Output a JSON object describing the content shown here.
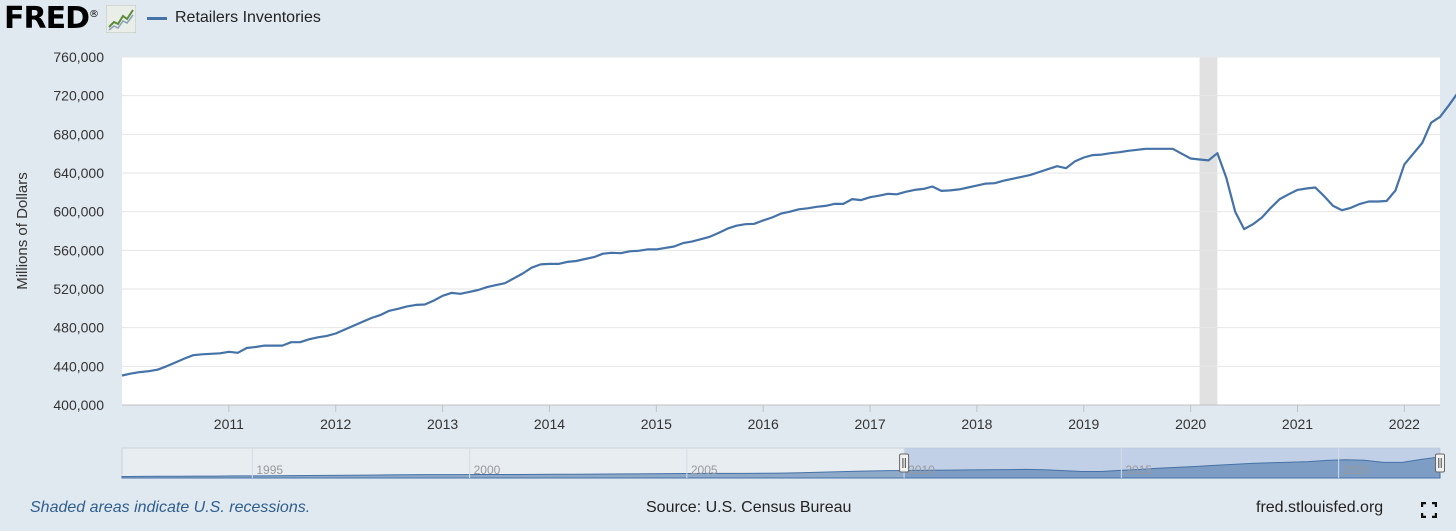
{
  "header": {
    "logo_text": "FRED",
    "logo_registered": "®",
    "logo_icon": "chart-line-icon",
    "legend_label": "Retailers Inventories"
  },
  "colors": {
    "series": "#4572a7",
    "recession": "#e1e1e1",
    "background": "#e1e9f0",
    "footer_note": "#2f5e8e"
  },
  "chart_data": {
    "type": "line",
    "title": "",
    "xlabel": "",
    "ylabel": "Millions of Dollars",
    "ylim": [
      400000,
      760000
    ],
    "yticks": [
      400000,
      440000,
      480000,
      520000,
      560000,
      600000,
      640000,
      680000,
      720000,
      760000
    ],
    "ytick_labels": [
      "400,000",
      "440,000",
      "480,000",
      "520,000",
      "560,000",
      "600,000",
      "640,000",
      "680,000",
      "720,000",
      "760,000"
    ],
    "xlim": [
      "2010-01",
      "2022-05"
    ],
    "xticks": [
      "2011",
      "2012",
      "2013",
      "2014",
      "2015",
      "2016",
      "2017",
      "2018",
      "2019",
      "2020",
      "2021",
      "2022"
    ],
    "grid": true,
    "legend": "top-left",
    "recessions": [
      {
        "start": "2020-02",
        "end": "2020-04"
      }
    ],
    "series": [
      {
        "name": "Retailers Inventories",
        "frequency": "monthly",
        "start": "2010-01",
        "values": [
          430500,
          432500,
          434000,
          435000,
          436500,
          440000,
          444000,
          448000,
          451500,
          452500,
          453000,
          453500,
          455000,
          454000,
          459000,
          460000,
          461500,
          461500,
          461500,
          465000,
          465000,
          468000,
          470000,
          471500,
          474000,
          478000,
          482000,
          486000,
          490000,
          493000,
          497500,
          499500,
          502000,
          503500,
          504000,
          508000,
          513000,
          516000,
          515000,
          517000,
          519000,
          522000,
          524000,
          526000,
          531000,
          536000,
          542000,
          545500,
          546000,
          546000,
          548000,
          549000,
          551000,
          553000,
          556500,
          557500,
          557000,
          559000,
          559500,
          561000,
          561000,
          562500,
          564000,
          567500,
          569000,
          571500,
          574000,
          578000,
          582500,
          585500,
          587000,
          587500,
          591000,
          594000,
          598000,
          600000,
          602500,
          603500,
          605000,
          606000,
          608000,
          608000,
          613000,
          612000,
          615000,
          616500,
          618500,
          618000,
          620500,
          622500,
          623500,
          626000,
          621500,
          622000,
          623000,
          625000,
          627000,
          629000,
          629500,
          632000,
          634000,
          636000,
          638000,
          641000,
          644000,
          647000,
          645000,
          652000,
          656000,
          658500,
          659000,
          660500,
          661500,
          663000,
          664000,
          665000,
          665000,
          665000,
          665000,
          660000,
          655000,
          654000,
          653000,
          660500,
          635000,
          600000,
          582000,
          587000,
          594000,
          604000,
          613000,
          618000,
          622500,
          624000,
          625000,
          616000,
          606000,
          601500,
          604000,
          608000,
          610500,
          610500,
          611000,
          622000,
          649000,
          660000,
          671000,
          692000,
          698000,
          710000,
          723000
        ]
      }
    ]
  },
  "navigator": {
    "tick_labels": [
      "1995",
      "2000",
      "2005",
      "2010",
      "2015",
      "2020"
    ],
    "full_range": [
      "1992-01",
      "2022-05"
    ],
    "selected_range": [
      "2010-01",
      "2022-05"
    ],
    "values": [
      330000,
      332000,
      333500,
      335000,
      337000,
      339000,
      341000,
      343000,
      345000,
      347500,
      350000,
      352500,
      356000,
      359000,
      362000,
      364500,
      367000,
      368500,
      369000,
      369500,
      370000,
      370500,
      372000,
      374000,
      376000,
      378000,
      380000,
      382000,
      385000,
      388000,
      390000,
      391000,
      392000,
      393000,
      395000,
      399000,
      406000,
      414000,
      424000,
      434000,
      443000,
      447000,
      451000,
      454500,
      458000,
      461500,
      465500,
      469000,
      473000,
      466000,
      447000,
      430000,
      430000,
      453000,
      470000,
      496000,
      513000,
      530000,
      553000,
      572000,
      592000,
      606000,
      616000,
      627000,
      652000,
      665000,
      656000,
      612000,
      611000,
      671000,
      723000
    ]
  },
  "footer": {
    "note": "Shaded areas indicate U.S. recessions.",
    "source": "Source: U.S. Census Bureau",
    "url": "fred.stlouisfed.org",
    "fullscreen_icon": "fullscreen-icon"
  }
}
